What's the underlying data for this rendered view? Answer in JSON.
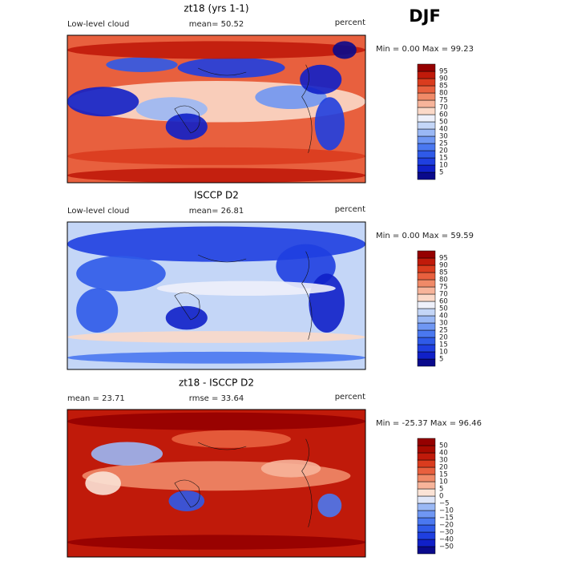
{
  "header": {
    "season": "DJF"
  },
  "panels": [
    {
      "title": "zt18 (yrs 1-1)",
      "left_label": "Low-level cloud",
      "mean_label": "mean=  50.52",
      "unit": "percent",
      "range_label": "Min =   0.00 Max =  99.23",
      "colorbar": {
        "labels": [
          "95",
          "90",
          "85",
          "80",
          "75",
          "70",
          "60",
          "50",
          "40",
          "30",
          "25",
          "20",
          "15",
          "10",
          "5"
        ],
        "colors": [
          "#0a0a8c",
          "#1020c8",
          "#1f3fe0",
          "#2f5ae8",
          "#4a78f0",
          "#6f97f3",
          "#9ab8f5",
          "#c4d6f7",
          "#eef0fa",
          "#fbd9c8",
          "#f7b49a",
          "#f08a68",
          "#e8603e",
          "#da3c1e",
          "#c01a0a",
          "#950000"
        ]
      }
    },
    {
      "title": "ISCCP D2",
      "left_label": "Low-level cloud",
      "mean_label": "mean=  26.81",
      "unit": "percent",
      "range_label": "Min =   0.00 Max =  59.59",
      "colorbar": {
        "labels": [
          "95",
          "90",
          "85",
          "80",
          "75",
          "70",
          "60",
          "50",
          "40",
          "30",
          "25",
          "20",
          "15",
          "10",
          "5"
        ],
        "colors": [
          "#0a0a8c",
          "#1020c8",
          "#1f3fe0",
          "#2f5ae8",
          "#4a78f0",
          "#6f97f3",
          "#9ab8f5",
          "#c4d6f7",
          "#eef0fa",
          "#fbd9c8",
          "#f7b49a",
          "#f08a68",
          "#e8603e",
          "#da3c1e",
          "#c01a0a",
          "#950000"
        ]
      }
    },
    {
      "title": "zt18 - ISCCP D2",
      "left_label": "mean =  23.71",
      "mean_label": "rmse =  33.64",
      "unit": "percent",
      "range_label": "Min = -25.37 Max =  96.46",
      "colorbar": {
        "labels": [
          "50",
          "40",
          "30",
          "20",
          "15",
          "10",
          "5",
          "0",
          "−5",
          "−10",
          "−15",
          "−20",
          "−30",
          "−40",
          "−50"
        ],
        "colors": [
          "#0a0a8c",
          "#1020c8",
          "#1f3fe0",
          "#2f5ae8",
          "#4a78f0",
          "#6f97f3",
          "#9ab8f5",
          "#dfe6f8",
          "#fbe3d6",
          "#f7b49a",
          "#f08a68",
          "#e8603e",
          "#da3c1e",
          "#c01a0a",
          "#a80a00",
          "#950000"
        ]
      }
    }
  ]
}
